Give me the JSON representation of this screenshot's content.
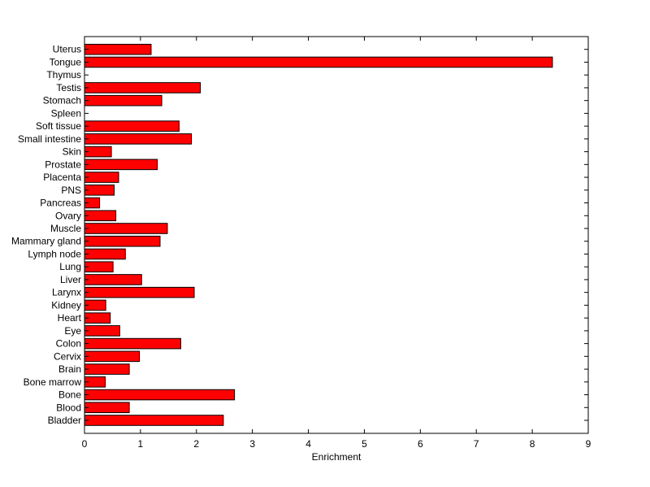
{
  "chart_data": {
    "type": "bar",
    "orientation": "horizontal",
    "title": "",
    "xlabel": "Enrichment",
    "ylabel": "",
    "xlim": [
      0,
      9
    ],
    "xticks": [
      0,
      1,
      2,
      3,
      4,
      5,
      6,
      7,
      8,
      9
    ],
    "grid": false,
    "bar_color": "#ff0000",
    "bar_edge_color": "#000000",
    "categories": [
      "Bladder",
      "Blood",
      "Bone",
      "Bone marrow",
      "Brain",
      "Cervix",
      "Colon",
      "Eye",
      "Heart",
      "Kidney",
      "Larynx",
      "Liver",
      "Lung",
      "Lymph node",
      "Mammary gland",
      "Muscle",
      "Ovary",
      "Pancreas",
      "PNS",
      "Placenta",
      "Prostate",
      "Skin",
      "Small intestine",
      "Soft tissue",
      "Spleen",
      "Stomach",
      "Testis",
      "Thymus",
      "Tongue",
      "Uterus"
    ],
    "values": [
      2.48,
      0.8,
      2.68,
      0.37,
      0.8,
      0.98,
      1.72,
      0.63,
      0.46,
      0.38,
      1.96,
      1.02,
      0.51,
      0.73,
      1.35,
      1.48,
      0.56,
      0.27,
      0.53,
      0.61,
      1.3,
      0.48,
      1.91,
      1.69,
      0,
      1.38,
      2.07,
      0,
      8.36,
      1.19
    ]
  }
}
